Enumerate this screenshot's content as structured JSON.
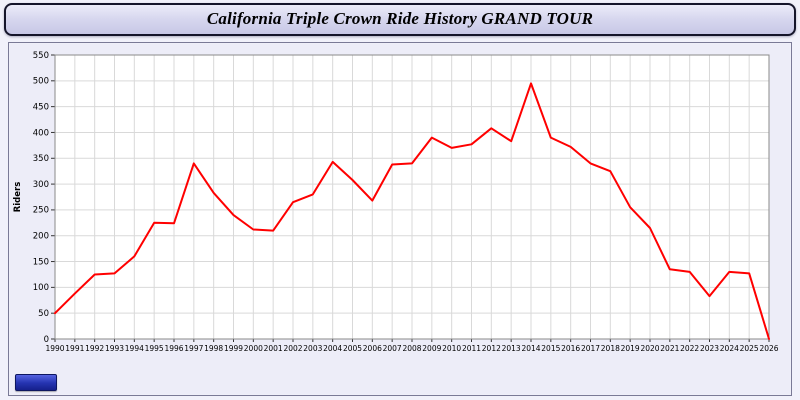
{
  "header": {
    "title": "California Triple Crown Ride History GRAND TOUR"
  },
  "colors": {
    "line": "#ff0000",
    "plot_background": "#ffffff",
    "grid": "#d9d9d9",
    "frame": "#8a8a8a",
    "panel_background": "#ededf8",
    "title_bar_background": "#d8d8ef",
    "badge_blue": "#2433b0"
  },
  "badge": {
    "label": ""
  },
  "chart_data": {
    "type": "line",
    "title": "California Triple Crown Ride History GRAND TOUR",
    "xlabel": "",
    "ylabel": "Riders",
    "ylim": [
      0,
      550
    ],
    "ytick_step": 50,
    "grid": true,
    "legend": "none",
    "line_color": "#ff0000",
    "x": [
      1990,
      1991,
      1992,
      1993,
      1994,
      1995,
      1996,
      1997,
      1998,
      1999,
      2000,
      2001,
      2002,
      2003,
      2004,
      2005,
      2006,
      2007,
      2008,
      2009,
      2010,
      2011,
      2012,
      2013,
      2014,
      2015,
      2016,
      2017,
      2018,
      2019,
      2020,
      2021,
      2022,
      2023,
      2024,
      2025,
      2026
    ],
    "values": [
      50,
      88,
      125,
      127,
      160,
      225,
      224,
      340,
      283,
      240,
      212,
      210,
      265,
      280,
      343,
      308,
      268,
      338,
      340,
      390,
      370,
      377,
      408,
      383,
      495,
      390,
      372,
      340,
      325,
      255,
      215,
      135,
      130,
      83,
      130,
      127,
      0
    ]
  }
}
